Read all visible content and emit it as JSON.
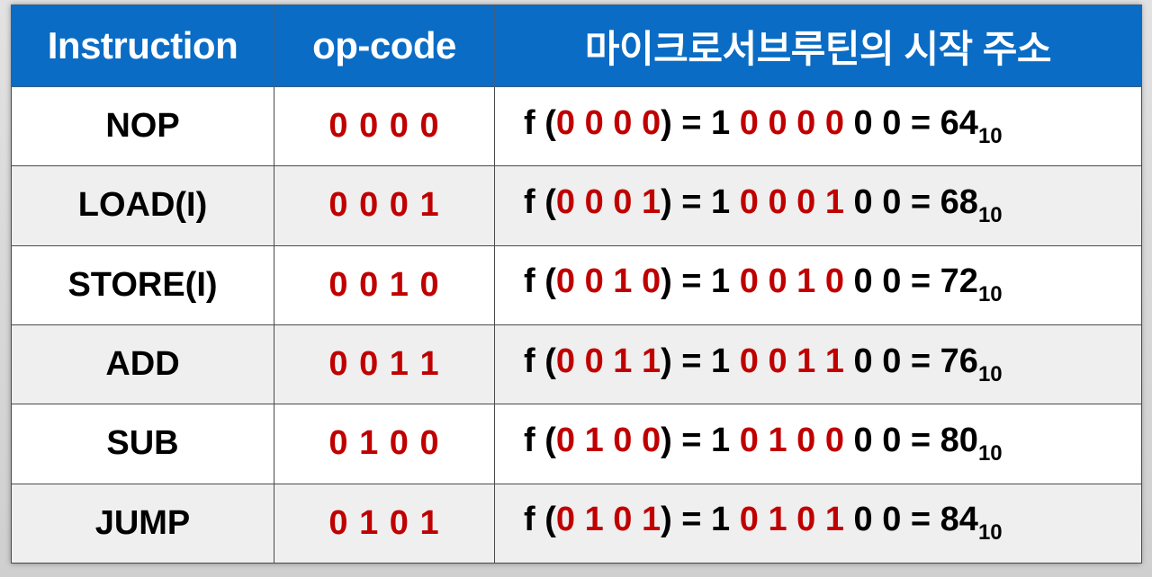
{
  "header": {
    "col_instruction": "Instruction",
    "col_opcode": "op-code",
    "col_address": "마이크로서브루틴의 시작 주소"
  },
  "rows": [
    {
      "instruction": "NOP",
      "opcode": "0 0 0 0",
      "expr_prefix": "f (",
      "expr_opcode": "0 0 0 0",
      "expr_mid": ") = 1 ",
      "expr_bits": "0 0 0 0",
      "expr_tail": " 0 0 = ",
      "expr_decimal": "64",
      "expr_base": "10"
    },
    {
      "instruction": "LOAD(I)",
      "opcode": "0 0 0 1",
      "expr_prefix": "f (",
      "expr_opcode": "0 0 0 1",
      "expr_mid": ") = 1 ",
      "expr_bits": "0 0 0 1",
      "expr_tail": " 0 0 = ",
      "expr_decimal": "68",
      "expr_base": "10"
    },
    {
      "instruction": "STORE(I)",
      "opcode": "0 0 1 0",
      "expr_prefix": "f (",
      "expr_opcode": "0 0 1 0",
      "expr_mid": ") = 1 ",
      "expr_bits": "0 0 1 0",
      "expr_tail": " 0 0 = ",
      "expr_decimal": "72",
      "expr_base": "10"
    },
    {
      "instruction": "ADD",
      "opcode": "0 0 1 1",
      "expr_prefix": "f (",
      "expr_opcode": "0 0 1 1",
      "expr_mid": ") = 1 ",
      "expr_bits": "0 0 1 1",
      "expr_tail": " 0 0 = ",
      "expr_decimal": "76",
      "expr_base": "10"
    },
    {
      "instruction": "SUB",
      "opcode": "0 1 0 0",
      "expr_prefix": "f (",
      "expr_opcode": "0 1 0 0",
      "expr_mid": ") = 1 ",
      "expr_bits": "0 1 0 0",
      "expr_tail": " 0 0 = ",
      "expr_decimal": "80",
      "expr_base": "10"
    },
    {
      "instruction": "JUMP",
      "opcode": "0 1 0 1",
      "expr_prefix": "f (",
      "expr_opcode": "0 1 0 1",
      "expr_mid": ") = 1 ",
      "expr_bits": "0 1 0 1",
      "expr_tail": " 0 0 = ",
      "expr_decimal": "84",
      "expr_base": "10"
    }
  ],
  "colors": {
    "header_bg": "#0a6cc4",
    "header_text": "#ffffff",
    "opcode_red": "#c00000",
    "text_black": "#000000",
    "row_alt": "#efefef"
  }
}
